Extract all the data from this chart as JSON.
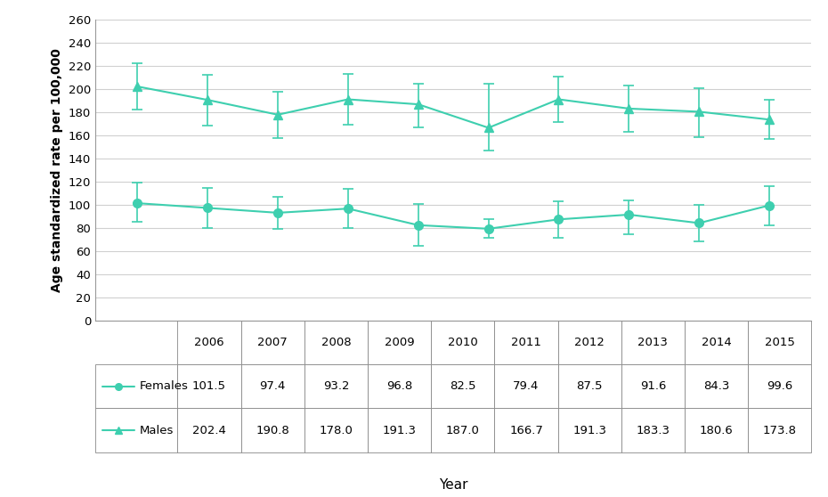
{
  "years": [
    2006,
    2007,
    2008,
    2009,
    2010,
    2011,
    2012,
    2013,
    2014,
    2015
  ],
  "females": [
    101.5,
    97.4,
    93.2,
    96.8,
    82.5,
    79.4,
    87.5,
    91.6,
    84.3,
    99.6
  ],
  "males": [
    202.4,
    190.8,
    178.0,
    191.3,
    187.0,
    166.7,
    191.3,
    183.3,
    180.6,
    173.8
  ],
  "females_err_low": [
    16.0,
    17.0,
    14.0,
    17.0,
    18.0,
    8.0,
    16.0,
    17.0,
    16.0,
    17.0
  ],
  "females_err_high": [
    18.0,
    17.0,
    14.0,
    17.0,
    18.0,
    8.0,
    16.0,
    12.0,
    16.0,
    17.0
  ],
  "males_err_low": [
    20.0,
    22.0,
    20.0,
    22.0,
    20.0,
    20.0,
    20.0,
    20.0,
    22.0,
    17.0
  ],
  "males_err_high": [
    20.0,
    22.0,
    20.0,
    22.0,
    18.0,
    38.0,
    20.0,
    20.0,
    20.0,
    17.0
  ],
  "line_color": "#3ecfaf",
  "ylabel": "Age standardized rate per 100,000",
  "xlabel": "Year",
  "ylim": [
    0,
    260
  ],
  "yticks": [
    0,
    20,
    40,
    60,
    80,
    100,
    120,
    140,
    160,
    180,
    200,
    220,
    240,
    260
  ],
  "legend_females": "Females",
  "legend_males": "Males",
  "table_years_label": [
    "2006",
    "2007",
    "2008",
    "2009",
    "2010",
    "2011",
    "2012",
    "2013",
    "2014",
    "2015"
  ],
  "table_females_vals": [
    "101.5",
    "97.4",
    "93.2",
    "96.8",
    "82.5",
    "79.4",
    "87.5",
    "91.6",
    "84.3",
    "99.6"
  ],
  "table_males_vals": [
    "202.4",
    "190.8",
    "178.0",
    "191.3",
    "187.0",
    "166.7",
    "191.3",
    "183.3",
    "180.6",
    "173.8"
  ],
  "background_color": "#ffffff",
  "grid_color": "#d0d0d0"
}
